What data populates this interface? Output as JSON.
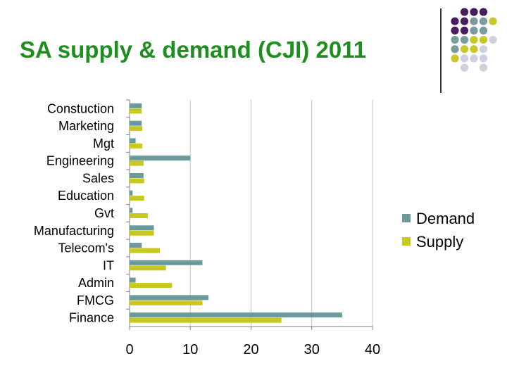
{
  "slide": {
    "title": "SA supply & demand (CJI) 2011"
  },
  "colors": {
    "title": "#1e8f1e",
    "demand": "#6a9a9a",
    "supply": "#c8c81e",
    "dot_purple": "#4a1e5e",
    "dot_teal": "#7a9c9c",
    "dot_yellow": "#c8c82a",
    "dot_lavender": "#d0d0e0",
    "grid": "#c0c0c0",
    "axis": "#808080"
  },
  "chart_data": {
    "type": "bar",
    "orientation": "horizontal",
    "categories": [
      "Constuction",
      "Marketing",
      "Mgt",
      "Engineering",
      "Sales",
      "Education",
      "Gvt",
      "Manufacturing",
      "Telecom's",
      "IT",
      "Admin",
      "FMCG",
      "Finance"
    ],
    "series": [
      {
        "name": "Demand",
        "values": [
          2,
          2,
          1,
          10,
          2.3,
          0.5,
          0.5,
          4,
          2,
          12,
          1,
          13,
          35
        ]
      },
      {
        "name": "Supply",
        "values": [
          2,
          2.1,
          2.1,
          2.3,
          2.4,
          2.4,
          3,
          4,
          5,
          6,
          7,
          12,
          25
        ]
      }
    ],
    "xlim": [
      0,
      40
    ],
    "xticks": [
      "0",
      "10",
      "20",
      "30",
      "40"
    ],
    "grid": true,
    "legend": [
      "Demand",
      "Supply"
    ],
    "legend_position": "right",
    "title": "",
    "xlabel": "",
    "ylabel": ""
  }
}
